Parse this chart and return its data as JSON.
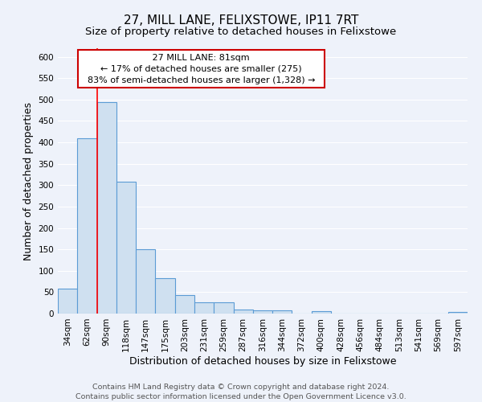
{
  "title": "27, MILL LANE, FELIXSTOWE, IP11 7RT",
  "subtitle": "Size of property relative to detached houses in Felixstowe",
  "xlabel": "Distribution of detached houses by size in Felixstowe",
  "ylabel": "Number of detached properties",
  "bar_labels": [
    "34sqm",
    "62sqm",
    "90sqm",
    "118sqm",
    "147sqm",
    "175sqm",
    "203sqm",
    "231sqm",
    "259sqm",
    "287sqm",
    "316sqm",
    "344sqm",
    "372sqm",
    "400sqm",
    "428sqm",
    "456sqm",
    "484sqm",
    "513sqm",
    "541sqm",
    "569sqm",
    "597sqm"
  ],
  "bar_values": [
    58,
    410,
    495,
    308,
    150,
    82,
    44,
    26,
    26,
    10,
    8,
    8,
    0,
    5,
    0,
    0,
    0,
    0,
    0,
    0,
    4
  ],
  "bar_color": "#cfe0f0",
  "bar_edge_color": "#5b9bd5",
  "redline_index": 2,
  "ylim": [
    0,
    620
  ],
  "yticks": [
    0,
    50,
    100,
    150,
    200,
    250,
    300,
    350,
    400,
    450,
    500,
    550,
    600
  ],
  "annotation_title": "27 MILL LANE: 81sqm",
  "annotation_line1": "← 17% of detached houses are smaller (275)",
  "annotation_line2": "83% of semi-detached houses are larger (1,328) →",
  "annotation_box_color": "#ffffff",
  "annotation_box_edge": "#cc0000",
  "footer_line1": "Contains HM Land Registry data © Crown copyright and database right 2024.",
  "footer_line2": "Contains public sector information licensed under the Open Government Licence v3.0.",
  "bg_color": "#eef2fa",
  "grid_color": "#ffffff",
  "title_fontsize": 11,
  "subtitle_fontsize": 9.5,
  "axis_label_fontsize": 9,
  "tick_fontsize": 7.5,
  "footer_fontsize": 6.8,
  "annotation_fontsize": 8
}
